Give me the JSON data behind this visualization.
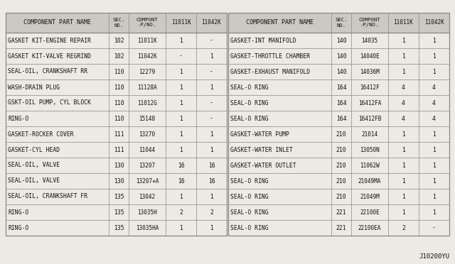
{
  "footer": "J10200YU",
  "bg_color": "#ede9e3",
  "header_bg": "#ccc9c2",
  "line_color": "#888880",
  "text_color": "#111111",
  "left_rows": [
    [
      "GASKET KIT-ENGINE REPAIR",
      "102",
      "11011K",
      "1",
      "-"
    ],
    [
      "GASKET KIT-VALVE REGRIND",
      "102",
      "11042K",
      "-",
      "1"
    ],
    [
      "SEAL-OIL, CRANKSHAFT RR",
      "110",
      "12279",
      "1",
      "-"
    ],
    [
      "WASH-DRAIN PLUG",
      "110",
      "11128A",
      "1",
      "1"
    ],
    [
      "GSKT-OIL PUMP, CYL BLOCK",
      "110",
      "11012G",
      "1",
      "-"
    ],
    [
      "RING-O",
      "110",
      "15148",
      "1",
      "-"
    ],
    [
      "GASKET-ROCKER COVER",
      "111",
      "13270",
      "1",
      "1"
    ],
    [
      "GASKET-CYL HEAD",
      "111",
      "11044",
      "1",
      "1"
    ],
    [
      "SEAL-OIL, VALVE",
      "130",
      "13207",
      "16",
      "16"
    ],
    [
      "SEAL-OIL, VALVE",
      "130",
      "13207+A",
      "16",
      "16"
    ],
    [
      "SEAL-OIL, CRANKSHAFT FR",
      "135",
      "13042",
      "1",
      "1"
    ],
    [
      "RING-O",
      "135",
      "13035H",
      "2",
      "2"
    ],
    [
      "RING-O",
      "135",
      "13035HA",
      "1",
      "1"
    ]
  ],
  "right_rows": [
    [
      "GASKET-INT MANIFOLD",
      "140",
      "14035",
      "1",
      "1"
    ],
    [
      "GASKET-THROTTLE CHAMBER",
      "140",
      "14040E",
      "1",
      "1"
    ],
    [
      "GASKET-EXHAUST MANIFOLD",
      "140",
      "14036M",
      "1",
      "1"
    ],
    [
      "SEAL-O RING",
      "164",
      "16412F",
      "4",
      "4"
    ],
    [
      "SEAL-O RING",
      "164",
      "16412FA",
      "4",
      "4"
    ],
    [
      "SEAL-O RING",
      "164",
      "16412FB",
      "4",
      "4"
    ],
    [
      "GASKET-WATER PUMP",
      "210",
      "21014",
      "1",
      "1"
    ],
    [
      "GASKET-WATER INLET",
      "210",
      "13050N",
      "1",
      "1"
    ],
    [
      "GASKET-WATER OUTLET",
      "210",
      "11062W",
      "1",
      "1"
    ],
    [
      "SEAL-O RING",
      "210",
      "21049MA",
      "1",
      "1"
    ],
    [
      "SEAL-O RING",
      "210",
      "21049M",
      "1",
      "1"
    ],
    [
      "SEAL-O RING",
      "221",
      "22100E",
      "1",
      "1"
    ],
    [
      "SEAL-O RING",
      "221",
      "22100EA",
      "2",
      "-"
    ]
  ]
}
